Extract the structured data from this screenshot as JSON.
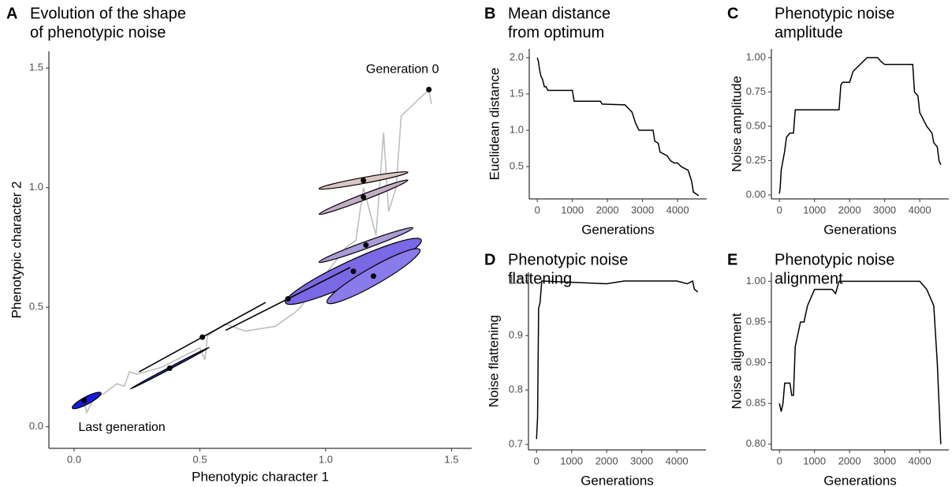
{
  "chart_data": [
    {
      "type": "scatter",
      "panel_label": "A",
      "title": [
        "Evolution of the shape",
        "of phenotypic noise"
      ],
      "xlabel": "Phenotypic character 1",
      "ylabel": "Phenotypic character 2",
      "xlim": [
        -0.1,
        1.58
      ],
      "ylim": [
        -0.09,
        1.57
      ],
      "xticks": [
        {
          "value": 0,
          "label": "0.0"
        },
        0.5,
        {
          "value": 1,
          "label": "1.0"
        },
        1.5
      ],
      "yticks": [
        {
          "value": 0,
          "label": "0.0"
        },
        0.5,
        {
          "value": 1,
          "label": "1.0"
        },
        1.5
      ],
      "line": {
        "color": "#bebebe",
        "x": [
          1.42,
          1.41,
          1.3,
          1.28,
          1.25,
          1.23,
          1.2,
          1.15,
          1.12,
          1.08,
          0.9,
          0.88,
          0.8,
          0.68,
          0.6,
          0.53,
          0.52,
          0.5,
          0.35,
          0.25,
          0.22,
          0.2,
          0.17,
          0.12,
          0.08,
          0.05,
          0.04
        ],
        "y": [
          1.35,
          1.41,
          1.3,
          1.0,
          0.9,
          1.23,
          0.8,
          1.0,
          0.78,
          0.75,
          0.5,
          0.48,
          0.42,
          0.4,
          0.43,
          0.38,
          0.28,
          0.33,
          0.25,
          0.22,
          0.23,
          0.17,
          0.18,
          0.14,
          0.12,
          0.06,
          0.11
        ]
      },
      "points": {
        "color": "#000000",
        "x": [
          1.41,
          1.15,
          1.15,
          1.16,
          1.11,
          1.19,
          0.85,
          0.51,
          0.38,
          0.04
        ],
        "y": [
          1.41,
          1.03,
          0.96,
          0.76,
          0.65,
          0.63,
          0.535,
          0.375,
          0.245,
          0.11
        ]
      },
      "ellipses": [
        {
          "x": 1.15,
          "y": 1.03,
          "semi_major": 0.18,
          "semi_minor": 0.012,
          "angle": 11,
          "color": "#dcc6c2"
        },
        {
          "x": 1.15,
          "y": 0.96,
          "semi_major": 0.19,
          "semi_minor": 0.012,
          "angle": 22,
          "color": "#c4acc8"
        },
        {
          "x": 1.16,
          "y": 0.76,
          "semi_major": 0.2,
          "semi_minor": 0.014,
          "angle": 21,
          "color": "#a99ad8"
        },
        {
          "x": 1.11,
          "y": 0.65,
          "semi_major": 0.3,
          "semi_minor": 0.045,
          "angle": 26,
          "color": "#7b68e4"
        },
        {
          "x": 1.19,
          "y": 0.63,
          "semi_major": 0.215,
          "semi_minor": 0.035,
          "angle": 31,
          "color": "#8a7aea"
        },
        {
          "x": 0.85,
          "y": 0.535,
          "semi_major": 0.28,
          "semi_minor": 0,
          "angle": 28,
          "color": "#000000"
        },
        {
          "x": 0.51,
          "y": 0.375,
          "semi_major": 0.29,
          "semi_minor": 0,
          "angle": 30,
          "color": "#000000"
        },
        {
          "x": 0.38,
          "y": 0.245,
          "semi_major": 0.18,
          "semi_minor": 0.004,
          "angle": 29,
          "color": "#3030a0"
        },
        {
          "x": 0.05,
          "y": 0.11,
          "semi_major": 0.065,
          "semi_minor": 0.015,
          "angle": 29,
          "color": "#1a1adb"
        }
      ],
      "annotations": [
        {
          "text": "Generation 0",
          "x": 1.305,
          "y": 1.493
        },
        {
          "text": "Last generation",
          "x": 0.19,
          "y": -0.003
        }
      ]
    },
    {
      "type": "line",
      "panel_label": "B",
      "title": [
        "Mean distance",
        "from optimum"
      ],
      "xlabel": "Generations",
      "ylabel": "Euclidean distance",
      "color": "#000000",
      "xlim": [
        -230,
        4830
      ],
      "ylim": [
        0.055,
        2.12
      ],
      "xticks": [
        0,
        1000,
        2000,
        3000,
        4000
      ],
      "yticks": [
        0.5,
        {
          "value": 1,
          "label": "1.0"
        },
        1.5,
        {
          "value": 2,
          "label": "2.0"
        }
      ],
      "x": [
        0,
        30,
        60,
        100,
        150,
        200,
        250,
        300,
        1000,
        1050,
        1800,
        1850,
        2500,
        2600,
        2700,
        2800,
        2900,
        3300,
        3350,
        3450,
        3500,
        3700,
        3800,
        3900,
        4000,
        4100,
        4300,
        4400,
        4450,
        4600
      ],
      "values": [
        2.0,
        1.95,
        1.85,
        1.75,
        1.7,
        1.6,
        1.6,
        1.55,
        1.55,
        1.4,
        1.4,
        1.36,
        1.35,
        1.3,
        1.25,
        1.1,
        1.0,
        1.0,
        0.85,
        0.82,
        0.7,
        0.65,
        0.58,
        0.55,
        0.55,
        0.5,
        0.45,
        0.3,
        0.15,
        0.1
      ]
    },
    {
      "type": "line",
      "panel_label": "C",
      "title": [
        "Phenotypic noise",
        "amplitude"
      ],
      "xlabel": "Generations",
      "ylabel": "Noise amplitude",
      "color": "#000000",
      "xlim": [
        -230,
        4830
      ],
      "ylim": [
        -0.029,
        1.063
      ],
      "xticks": [
        0,
        1000,
        2000,
        3000,
        4000
      ],
      "yticks": [
        {
          "value": 0,
          "label": "0.00"
        },
        0.25,
        {
          "value": 0.5,
          "label": "0.50"
        },
        0.75,
        {
          "value": 1,
          "label": "1.00"
        }
      ],
      "x": [
        0,
        20,
        50,
        100,
        150,
        200,
        300,
        400,
        450,
        1700,
        1750,
        1800,
        2000,
        2100,
        2300,
        2500,
        2800,
        2900,
        3000,
        3800,
        3850,
        3950,
        4000,
        4100,
        4200,
        4350,
        4400,
        4500,
        4550,
        4600
      ],
      "values": [
        0.01,
        0.05,
        0.18,
        0.25,
        0.32,
        0.42,
        0.45,
        0.45,
        0.62,
        0.62,
        0.8,
        0.82,
        0.82,
        0.9,
        0.95,
        1.0,
        1.0,
        0.97,
        0.95,
        0.95,
        0.75,
        0.72,
        0.6,
        0.55,
        0.5,
        0.45,
        0.38,
        0.35,
        0.25,
        0.22
      ]
    },
    {
      "type": "line",
      "panel_label": "D",
      "title": [
        "Phenotypic noise",
        "flattening"
      ],
      "xlabel": "Generations",
      "ylabel": "Noise flattening",
      "color": "#000000",
      "xlim": [
        -230,
        4830
      ],
      "ylim": [
        0.69,
        1.016
      ],
      "xticks": [
        0,
        1000,
        2000,
        3000,
        4000
      ],
      "yticks": [
        0.7,
        0.8,
        0.9,
        {
          "value": 1,
          "label": "1.0"
        }
      ],
      "x": [
        0,
        30,
        60,
        100,
        150,
        2000,
        2500,
        4000,
        4300,
        4450,
        4500,
        4600
      ],
      "values": [
        0.71,
        0.75,
        0.95,
        0.96,
        1.0,
        0.995,
        1.0,
        1.0,
        0.995,
        1.0,
        0.985,
        0.98
      ]
    },
    {
      "type": "line",
      "panel_label": "E",
      "title": [
        "Phenotypic noise",
        "alignment"
      ],
      "xlabel": "Generations",
      "ylabel": "Noise alignment",
      "color": "#000000",
      "xlim": [
        -230,
        4830
      ],
      "ylim": [
        0.793,
        1.011
      ],
      "xticks": [
        0,
        1000,
        2000,
        3000,
        4000
      ],
      "yticks": [
        {
          "value": 0.8,
          "label": "0.80"
        },
        0.85,
        {
          "value": 0.9,
          "label": "0.90"
        },
        0.95,
        {
          "value": 1,
          "label": "1.00"
        }
      ],
      "x": [
        0,
        50,
        100,
        150,
        300,
        350,
        400,
        450,
        600,
        700,
        800,
        1000,
        1500,
        1600,
        1700,
        4000,
        4200,
        4400,
        4500,
        4550,
        4600
      ],
      "values": [
        0.85,
        0.84,
        0.85,
        0.875,
        0.875,
        0.86,
        0.86,
        0.92,
        0.95,
        0.95,
        0.97,
        0.99,
        0.99,
        0.985,
        1.0,
        1.0,
        0.99,
        0.97,
        0.9,
        0.85,
        0.8
      ]
    }
  ]
}
